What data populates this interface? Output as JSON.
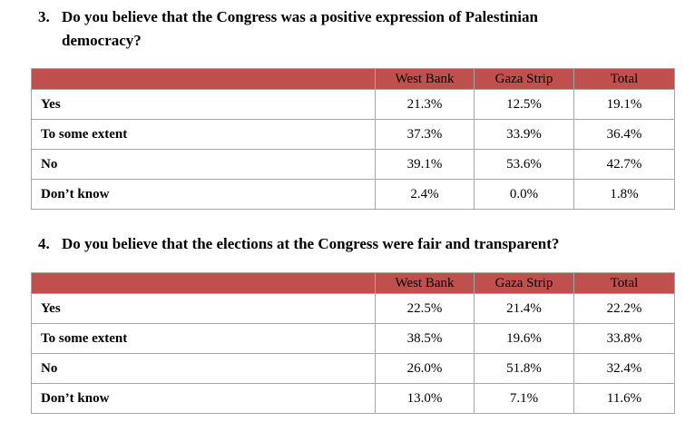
{
  "q3": {
    "number": "3.",
    "text": "Do you believe that the Congress was a positive expression of Palestinian\ndemocracy?",
    "headers": [
      "",
      "West Bank",
      "Gaza Strip",
      "Total"
    ],
    "rows": [
      {
        "label": "Yes",
        "west_bank": "21.3%",
        "gaza_strip": "12.5%",
        "total": "19.1%"
      },
      {
        "label": "To some extent",
        "west_bank": "37.3%",
        "gaza_strip": "33.9%",
        "total": "36.4%"
      },
      {
        "label": "No",
        "west_bank": "39.1%",
        "gaza_strip": "53.6%",
        "total": "42.7%"
      },
      {
        "label": "Don’t know",
        "west_bank": "2.4%",
        "gaza_strip": "0.0%",
        "total": "1.8%"
      }
    ]
  },
  "q4": {
    "number": "4.",
    "text": "Do you believe that the elections at the Congress were fair and transparent?",
    "headers": [
      "",
      "West Bank",
      "Gaza Strip",
      "Total"
    ],
    "rows": [
      {
        "label": "Yes",
        "west_bank": "22.5%",
        "gaza_strip": "21.4%",
        "total": "22.2%"
      },
      {
        "label": "To some extent",
        "west_bank": "38.5%",
        "gaza_strip": "19.6%",
        "total": "33.8%"
      },
      {
        "label": "No",
        "west_bank": "26.0%",
        "gaza_strip": "51.8%",
        "total": "32.4%"
      },
      {
        "label": "Don’t know",
        "west_bank": "13.0%",
        "gaza_strip": "7.1%",
        "total": "11.6%"
      }
    ]
  },
  "colors": {
    "header_bg": "#c0504d",
    "border": "#a6a6a6"
  }
}
